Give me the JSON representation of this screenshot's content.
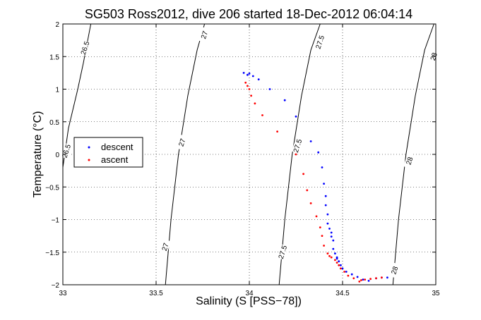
{
  "chart_data": {
    "type": "scatter",
    "title": "SG503 Ross2012, dive 206 started 18-Dec-2012 06:04:14",
    "xlabel": "Salinity (S [PSS−78])",
    "ylabel": "Temperature (°C)",
    "xlim": [
      33,
      35
    ],
    "ylim": [
      -2,
      2
    ],
    "x_ticks": [
      33,
      33.5,
      34,
      34.5,
      35
    ],
    "x_tick_labels": [
      "33",
      "33.5",
      "34",
      "34.5",
      "35"
    ],
    "y_ticks": [
      -2,
      -1.5,
      -1,
      -0.5,
      0,
      0.5,
      1,
      1.5,
      2
    ],
    "y_tick_labels": [
      "−2",
      "−1.5",
      "−1",
      "−0.5",
      "0",
      "0.5",
      "1",
      "1.5",
      "2"
    ],
    "grid": true,
    "legend_position": "left",
    "contours": [
      {
        "label": "26.5",
        "color": "#000000",
        "points": [
          [
            33.0,
            -0.2
          ],
          [
            33.03,
            0.4
          ],
          [
            33.08,
            1.0
          ],
          [
            33.11,
            1.4
          ],
          [
            33.15,
            2.0
          ]
        ]
      },
      {
        "label": "27",
        "color": "#000000",
        "points": [
          [
            33.55,
            -2.0
          ],
          [
            33.58,
            -1.0
          ],
          [
            33.62,
            0.0
          ],
          [
            33.67,
            0.9
          ],
          [
            33.72,
            1.6
          ],
          [
            33.76,
            2.0
          ]
        ]
      },
      {
        "label": "27.5",
        "color": "#000000",
        "points": [
          [
            34.16,
            -2.0
          ],
          [
            34.19,
            -1.0
          ],
          [
            34.23,
            0.0
          ],
          [
            34.28,
            0.9
          ],
          [
            34.33,
            1.6
          ],
          [
            34.38,
            2.0
          ]
        ]
      },
      {
        "label": "28",
        "color": "#000000",
        "points": [
          [
            34.77,
            -2.0
          ],
          [
            34.8,
            -1.0
          ],
          [
            34.84,
            0.0
          ],
          [
            34.89,
            0.9
          ],
          [
            34.94,
            1.6
          ],
          [
            34.99,
            2.0
          ]
        ]
      }
    ],
    "contour_labels": [
      {
        "text": "26.5",
        "x": 33.12,
        "y": 1.63
      },
      {
        "text": "26.5",
        "x": 33.02,
        "y": 0.05
      },
      {
        "text": "27",
        "x": 33.76,
        "y": 1.83
      },
      {
        "text": "27",
        "x": 33.64,
        "y": 0.18
      },
      {
        "text": "27",
        "x": 33.55,
        "y": -1.42
      },
      {
        "text": "27.5",
        "x": 34.38,
        "y": 1.72
      },
      {
        "text": "27.5",
        "x": 34.26,
        "y": 0.13
      },
      {
        "text": "27.5",
        "x": 34.18,
        "y": -1.5
      },
      {
        "text": "28",
        "x": 34.99,
        "y": 1.5
      },
      {
        "text": "28",
        "x": 34.86,
        "y": -0.1
      },
      {
        "text": "28",
        "x": 34.78,
        "y": -1.78
      }
    ],
    "series": [
      {
        "name": "descent",
        "color": "#0000ff",
        "x": [
          33.97,
          33.99,
          34.0,
          34.02,
          34.05,
          34.11,
          34.19,
          34.25,
          34.33,
          34.37,
          34.39,
          34.4,
          34.41,
          34.41,
          34.42,
          34.42,
          34.43,
          34.44,
          34.44,
          34.45,
          34.45,
          34.46,
          34.47,
          34.47,
          34.48,
          34.49,
          34.5,
          34.52,
          34.55,
          34.58,
          34.61,
          34.64,
          34.68,
          34.71,
          34.74
        ],
        "y": [
          1.25,
          1.22,
          1.24,
          1.2,
          1.15,
          1.0,
          0.83,
          0.58,
          0.2,
          0.03,
          -0.2,
          -0.45,
          -0.64,
          -0.78,
          -0.92,
          -1.06,
          -1.14,
          -1.2,
          -1.26,
          -1.32,
          -1.45,
          -1.52,
          -1.58,
          -1.6,
          -1.64,
          -1.7,
          -1.75,
          -1.8,
          -1.84,
          -1.88,
          -1.92,
          -1.94,
          -1.9,
          -1.89,
          -1.89
        ]
      },
      {
        "name": "ascent",
        "color": "#ff0000",
        "x": [
          33.98,
          33.99,
          34.0,
          34.01,
          34.03,
          34.07,
          34.15,
          34.25,
          34.29,
          34.31,
          34.33,
          34.36,
          34.38,
          34.39,
          34.4,
          34.42,
          34.43,
          34.44,
          34.46,
          34.47,
          34.48,
          34.49,
          34.51,
          34.53,
          34.56,
          34.59,
          34.6,
          34.62,
          34.65,
          34.68,
          34.71
        ],
        "y": [
          1.1,
          1.05,
          1.0,
          0.9,
          0.78,
          0.6,
          0.35,
          0.0,
          -0.3,
          -0.55,
          -0.75,
          -0.95,
          -1.12,
          -1.25,
          -1.4,
          -1.52,
          -1.56,
          -1.58,
          -1.62,
          -1.66,
          -1.7,
          -1.75,
          -1.8,
          -1.86,
          -1.9,
          -1.95,
          -1.93,
          -1.92,
          -1.91,
          -1.9,
          -1.89
        ]
      }
    ]
  }
}
